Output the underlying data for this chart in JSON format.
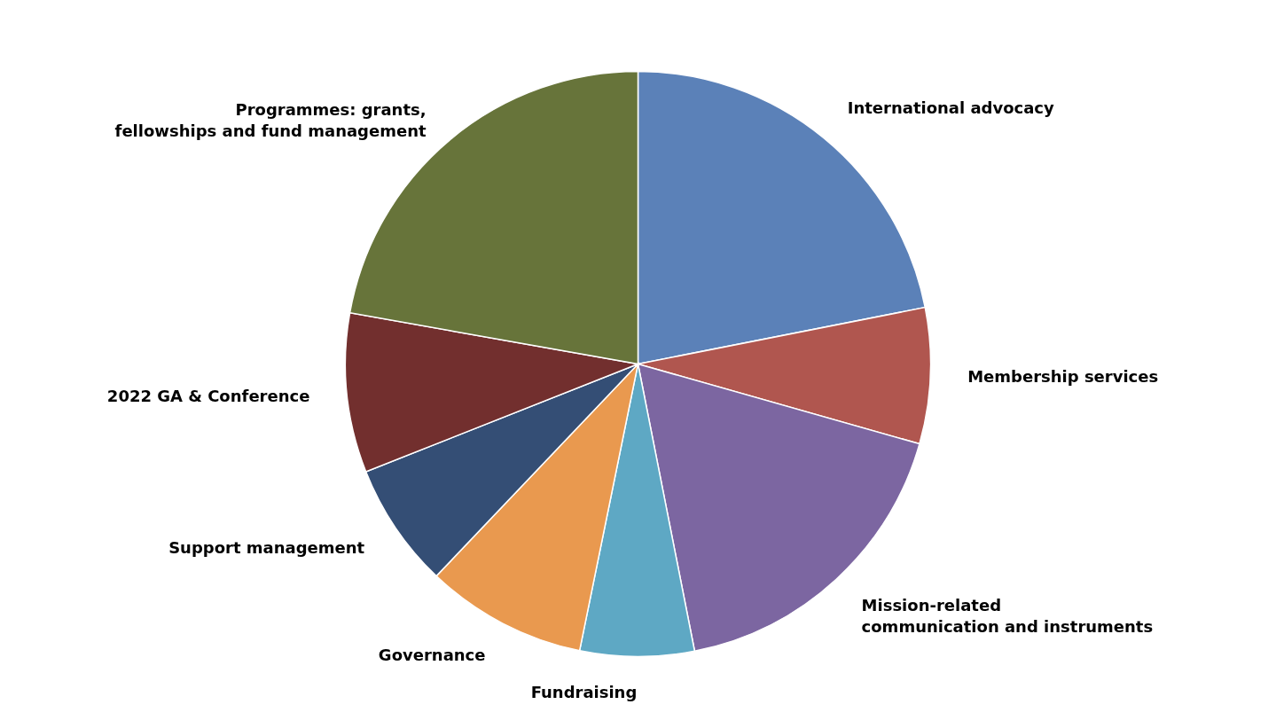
{
  "chart_data": {
    "type": "pie",
    "categories": [
      "International advocacy",
      "Membership services",
      "Mission-related communication and instruments",
      "Fundraising",
      "Governance",
      "Support management",
      "2022 GA & Conference",
      "Programmes: grants, fellowships and fund management"
    ],
    "values": [
      21.9,
      7.5,
      17.5,
      6.3,
      8.9,
      6.9,
      8.8,
      22.2
    ],
    "colors": [
      "#5b81b8",
      "#b0564f",
      "#7c66a1",
      "#5ea8c4",
      "#e9994f",
      "#344e75",
      "#722f2e",
      "#67743a"
    ]
  }
}
